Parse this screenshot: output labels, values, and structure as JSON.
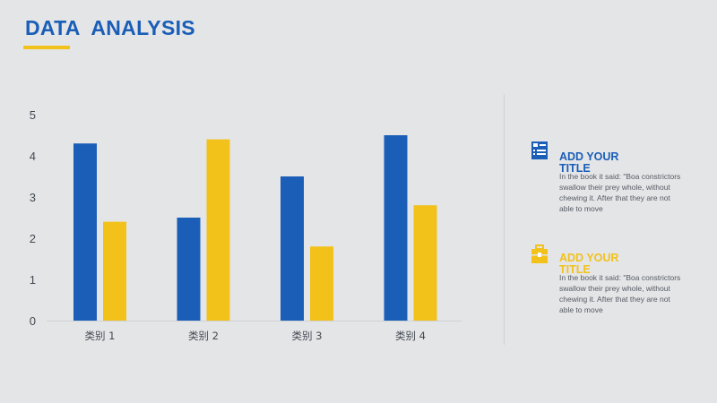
{
  "header": {
    "title": "DATA  ANALYSIS"
  },
  "colors": {
    "accent_blue": "#1a5eb8",
    "accent_yellow": "#f2c21b",
    "background": "#e4e5e7"
  },
  "chart_data": {
    "type": "bar",
    "categories": [
      "类别 1",
      "类别 2",
      "类别 3",
      "类别 4"
    ],
    "series": [
      {
        "values": [
          4.3,
          2.5,
          3.5,
          4.5
        ],
        "color": "#1a5eb8"
      },
      {
        "values": [
          2.4,
          4.4,
          1.8,
          2.8
        ],
        "color": "#f2c21b"
      }
    ],
    "ylim": [
      0,
      5
    ],
    "yticks": [
      "0",
      "1",
      "2",
      "3",
      "4",
      "5"
    ],
    "grid": false,
    "legend": "none"
  },
  "info_blocks": [
    {
      "icon": "document-list-icon",
      "title": "ADD YOUR TITLE",
      "body": "In the book it said: \"Boa constrictors swallow their prey whole, without chewing it. After that they are not able to move",
      "color": "#1a5eb8"
    },
    {
      "icon": "briefcase-icon",
      "title": "ADD YOUR TITLE",
      "body": "In the book it said: \"Boa constrictors swallow their prey whole, without chewing it. After that they are not able to move",
      "color": "#f2c21b"
    }
  ]
}
